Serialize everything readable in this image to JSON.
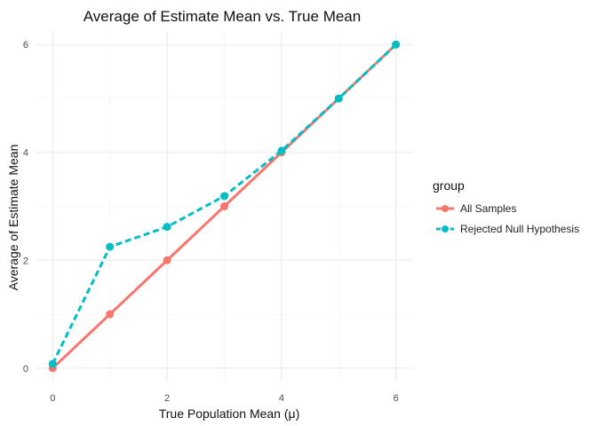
{
  "chart_data": {
    "type": "line",
    "title": "Average of Estimate Mean vs. True Mean",
    "xlabel": "True Population Mean (μ)",
    "ylabel": "Average of Estimate Mean",
    "xlim": [
      -0.3,
      6.3
    ],
    "ylim": [
      -0.25,
      6.25
    ],
    "x_ticks": [
      0,
      2,
      4,
      6
    ],
    "y_ticks": [
      0,
      2,
      4,
      6
    ],
    "grid": true,
    "legend": {
      "title": "group",
      "position": "right"
    },
    "series": [
      {
        "name": "All Samples",
        "color": "#F8766D",
        "line_style": "solid",
        "x": [
          0,
          1,
          2,
          3,
          4,
          5,
          6
        ],
        "y": [
          0.0,
          1.0,
          2.0,
          3.0,
          4.0,
          5.0,
          6.0
        ]
      },
      {
        "name": "Rejected Null Hypothesis",
        "color": "#00BFC4",
        "line_style": "dashed",
        "x": [
          0,
          1,
          2,
          3,
          4,
          5,
          6
        ],
        "y": [
          0.08,
          2.25,
          2.62,
          3.19,
          4.03,
          5.0,
          6.0
        ]
      }
    ]
  }
}
